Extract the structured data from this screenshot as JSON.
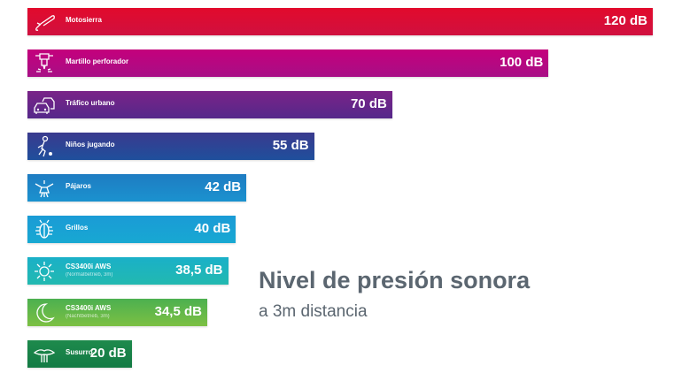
{
  "chart_data": {
    "type": "bar",
    "orientation": "horizontal",
    "title": "Nivel de presión sonora",
    "subtitle": "a 3m distancia",
    "unit": "dB",
    "categories": [
      {
        "label": "Motosierra",
        "sub": "",
        "icon": "chainsaw-icon",
        "value": 120,
        "value_label": "120 dB",
        "color": "#e20a2c",
        "color2": "#d0103f"
      },
      {
        "label": "Martillo perforador",
        "sub": "",
        "icon": "jackhammer-icon",
        "value": 100,
        "value_label": "100 dB",
        "color": "#c4007c",
        "color2": "#a80f86"
      },
      {
        "label": "Tráfico urbano",
        "sub": "",
        "icon": "cars-icon",
        "value": 70,
        "value_label": "70 dB",
        "color": "#7a2388",
        "color2": "#55288a"
      },
      {
        "label": "Niños jugando",
        "sub": "",
        "icon": "child-playing-icon",
        "value": 55,
        "value_label": "55 dB",
        "color": "#3a3a8e",
        "color2": "#1f4f9c"
      },
      {
        "label": "Pájaros",
        "sub": "",
        "icon": "bird-icon",
        "value": 42,
        "value_label": "42 dB",
        "color": "#1e7cc2",
        "color2": "#1b92cf"
      },
      {
        "label": "Grillos",
        "sub": "",
        "icon": "cricket-icon",
        "value": 40,
        "value_label": "40 dB",
        "color": "#1a9bd6",
        "color2": "#18a8d2"
      },
      {
        "label": "CS3400i AWS",
        "sub": "(Normalbetrieb, 3m)",
        "icon": "sun-icon",
        "value": 38.5,
        "value_label": "38,5 dB",
        "color": "#1ab0c8",
        "color2": "#22b9b0"
      },
      {
        "label": "CS3400i AWS",
        "sub": "(Nachtbetrieb, 3m)",
        "icon": "moon-icon",
        "value": 34.5,
        "value_label": "34,5 dB",
        "color": "#4cb050",
        "color2": "#7cc043"
      },
      {
        "label": "Susurro",
        "sub": "",
        "icon": "whisper-lips-icon",
        "value": 20,
        "value_label": "20 dB",
        "color": "#1e8a4c",
        "color2": "#137a44"
      }
    ],
    "xlim": [
      0,
      120
    ],
    "grid": false,
    "legend": "none"
  }
}
